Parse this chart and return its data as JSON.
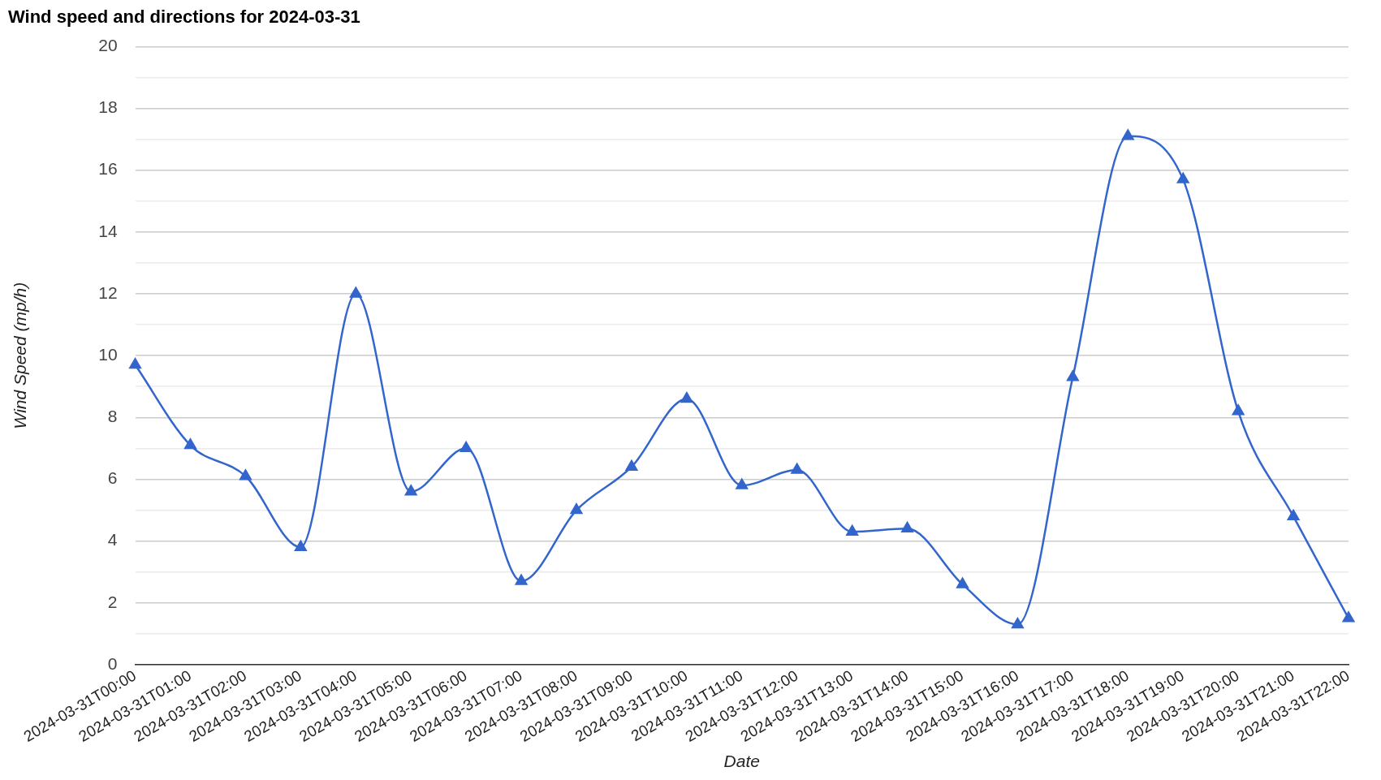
{
  "chart_data": {
    "type": "line",
    "title": "Wind speed and directions for 2024-03-31",
    "xlabel": "Date",
    "ylabel": "Wind Speed (mp/h)",
    "categories": [
      "2024-03-31T00:00",
      "2024-03-31T01:00",
      "2024-03-31T02:00",
      "2024-03-31T03:00",
      "2024-03-31T04:00",
      "2024-03-31T05:00",
      "2024-03-31T06:00",
      "2024-03-31T07:00",
      "2024-03-31T08:00",
      "2024-03-31T09:00",
      "2024-03-31T10:00",
      "2024-03-31T11:00",
      "2024-03-31T12:00",
      "2024-03-31T13:00",
      "2024-03-31T14:00",
      "2024-03-31T15:00",
      "2024-03-31T16:00",
      "2024-03-31T17:00",
      "2024-03-31T18:00",
      "2024-03-31T19:00",
      "2024-03-31T20:00",
      "2024-03-31T21:00",
      "2024-03-31T22:00"
    ],
    "series": [
      {
        "color": "#3366cc",
        "values": [
          9.7,
          7.1,
          6.1,
          3.8,
          12.0,
          5.6,
          7.0,
          2.7,
          5.0,
          6.4,
          8.6,
          5.8,
          6.3,
          4.3,
          4.4,
          2.6,
          1.3,
          9.3,
          17.1,
          15.7,
          8.2,
          4.8,
          1.5
        ]
      }
    ],
    "ylim": [
      0,
      20
    ],
    "yticks": [
      0,
      {
        "value": 1,
        "label": null
      },
      2,
      {
        "value": 3,
        "label": null
      },
      4,
      {
        "value": 5,
        "label": null
      },
      6,
      {
        "value": 7,
        "label": null
      },
      8,
      {
        "value": 9,
        "label": null
      },
      10,
      {
        "value": 11,
        "label": null
      },
      12,
      {
        "value": 13,
        "label": null
      },
      14,
      {
        "value": 15,
        "label": null
      },
      16,
      {
        "value": 17,
        "label": null
      },
      18,
      {
        "value": 19,
        "label": null
      },
      20
    ],
    "grid": "y",
    "legend": false,
    "marker": "triangle",
    "line_style": "solid"
  }
}
